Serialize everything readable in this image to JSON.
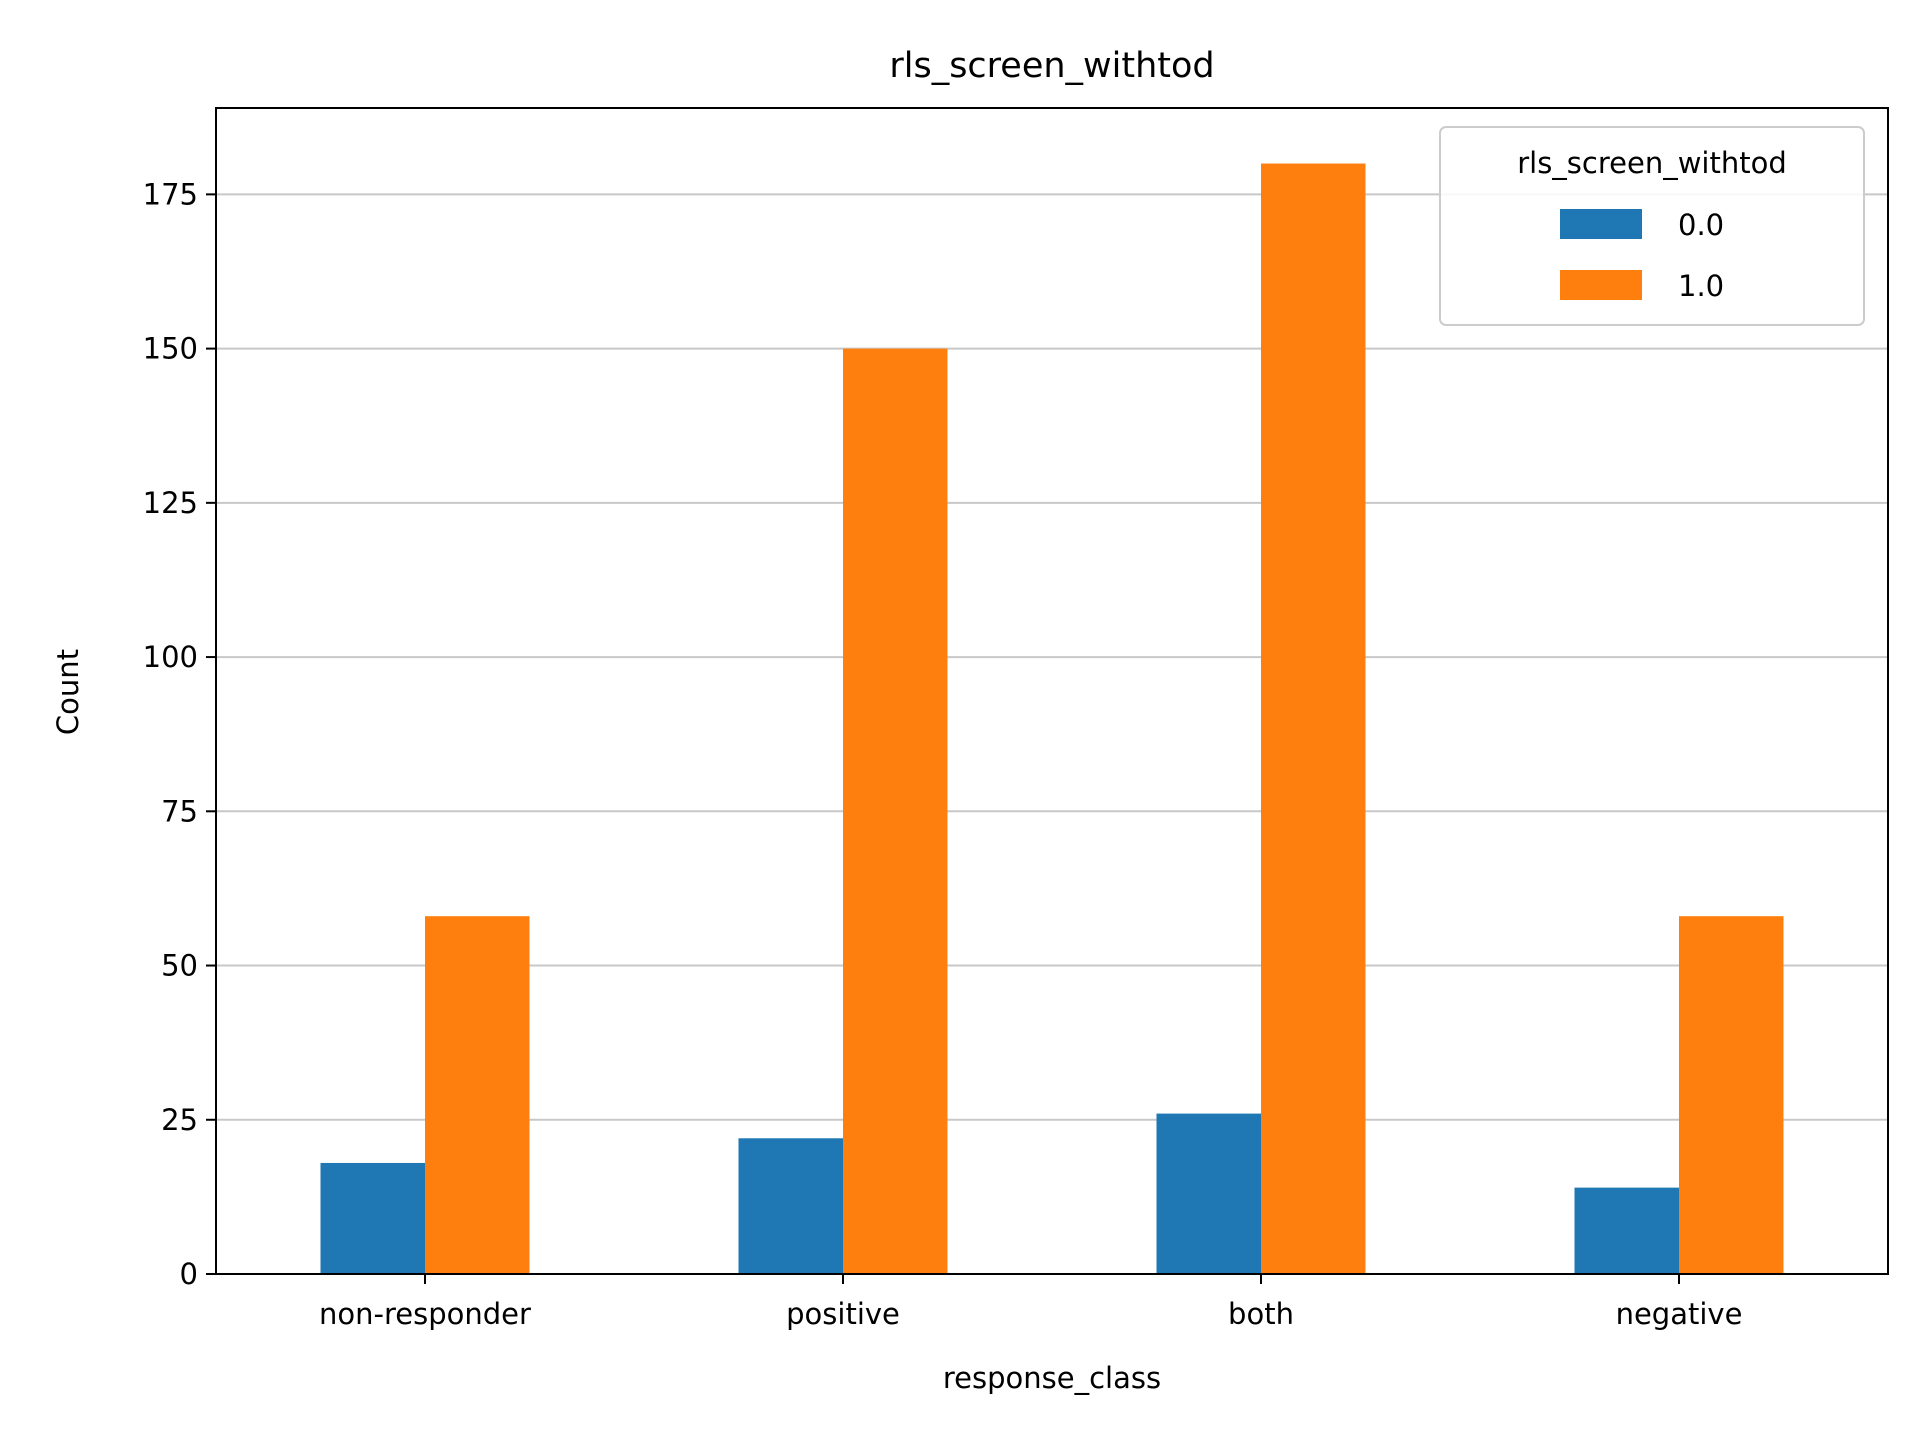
{
  "chart_data": {
    "type": "bar",
    "title": "rls_screen_withtod",
    "xlabel": "response_class",
    "ylabel": "Count",
    "categories": [
      "non-responder",
      "positive",
      "both",
      "negative"
    ],
    "series": [
      {
        "name": "0.0",
        "color": "#1f77b4",
        "values": [
          18,
          22,
          26,
          14
        ]
      },
      {
        "name": "1.0",
        "color": "#ff7f0e",
        "values": [
          58,
          150,
          180,
          58
        ]
      }
    ],
    "ylim": [
      0,
      189
    ],
    "yticks": [
      0,
      25,
      50,
      75,
      100,
      125,
      150,
      175
    ],
    "grid": "horizontal",
    "legend": {
      "title": "rls_screen_withtod",
      "position": "top-right"
    }
  }
}
